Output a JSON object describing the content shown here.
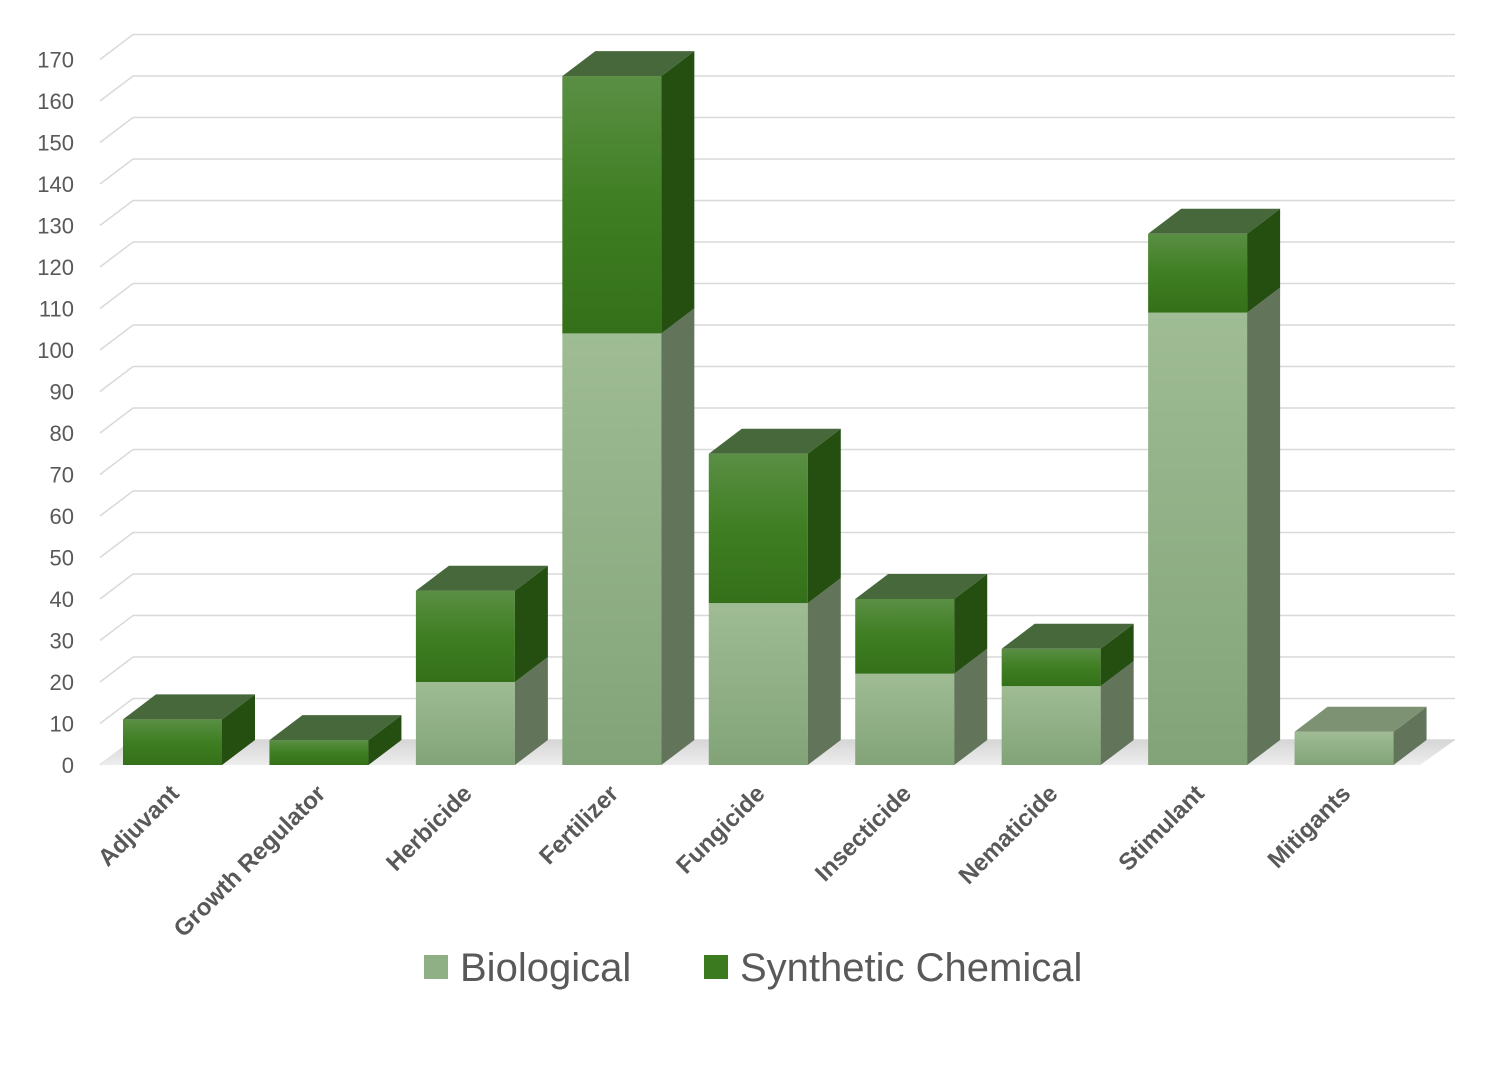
{
  "chart_data": {
    "type": "bar",
    "stacked": true,
    "three_d": true,
    "categories": [
      "Adjuvant",
      "Growth Regulator",
      "Herbicide",
      "Fertilizer",
      "Fungicide",
      "Insecticide",
      "Nematicide",
      "Stimulant",
      "Mitigants"
    ],
    "series": [
      {
        "name": "Biological",
        "values": [
          0,
          0,
          20,
          104,
          39,
          22,
          19,
          109,
          8
        ],
        "color": "#8fb085"
      },
      {
        "name": "Synthetic Chemical",
        "values": [
          11,
          6,
          22,
          62,
          36,
          18,
          9,
          19,
          0
        ],
        "color": "#3c7a1f"
      }
    ],
    "ylim": [
      0,
      170
    ],
    "yticks": [
      0,
      10,
      20,
      30,
      40,
      50,
      60,
      70,
      80,
      90,
      100,
      110,
      120,
      130,
      140,
      150,
      160,
      170
    ],
    "grid": true,
    "legend_position": "bottom",
    "title": "",
    "xlabel": "",
    "ylabel": ""
  }
}
